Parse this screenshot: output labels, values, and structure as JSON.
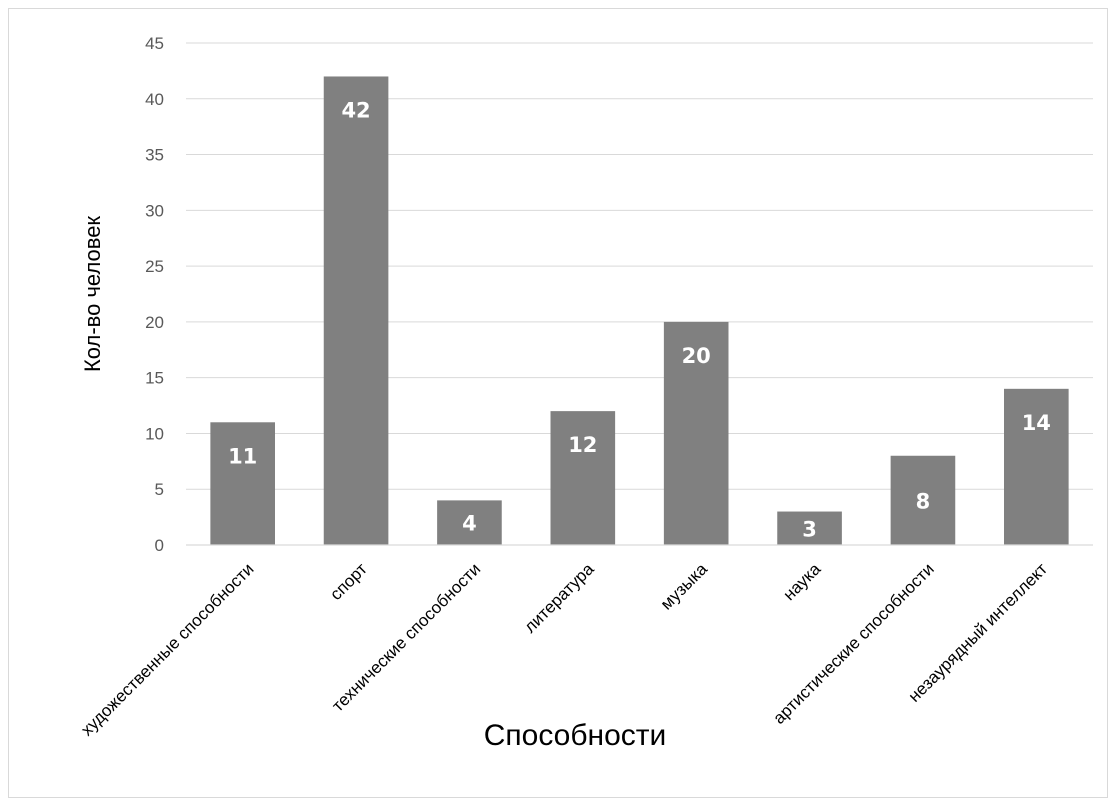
{
  "chart_data": {
    "type": "bar",
    "title": "",
    "xlabel": "Способности",
    "ylabel": "Кол-во человек",
    "categories": [
      "художественные способности",
      "спорт",
      "технические способности",
      "литература",
      "музыка",
      "наука",
      "артистические способности",
      "незаурядный интеллект"
    ],
    "values": [
      11,
      42,
      4,
      12,
      20,
      3,
      8,
      14
    ],
    "ylim": [
      0,
      45
    ],
    "yticks": [
      0,
      5,
      10,
      15,
      20,
      25,
      30,
      35,
      40,
      45
    ],
    "grid": true,
    "legend": "none",
    "colors": {
      "bar": "#808080",
      "grid": "#d9d9d9",
      "data_label": "#ffffff"
    }
  }
}
